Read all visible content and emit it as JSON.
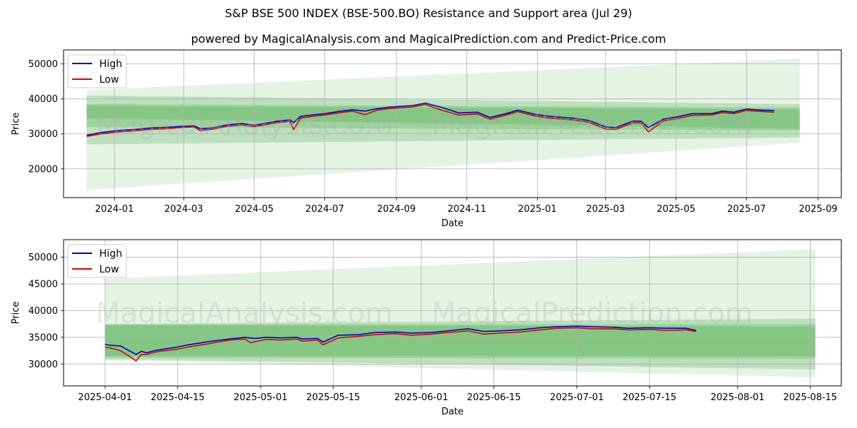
{
  "title": "S&P BSE 500 INDEX (BSE-500.BO) Resistance and Support area (Jul 29)",
  "subtitle": "powered by MagicalAnalysis.com and MagicalPrediction.com and Predict-Price.com",
  "watermarks": [
    "MagicalAnalysis.com",
    "MagicalPrediction.com"
  ],
  "colors": {
    "high": "#0000cc",
    "low": "#dd0000",
    "band": "#2ca02c",
    "grid": "#b0b0b0"
  },
  "chart_data": [
    {
      "type": "line",
      "xlabel": "Date",
      "ylabel": "Price",
      "x_ticks": [
        "2024-01",
        "2024-03",
        "2024-05",
        "2024-07",
        "2024-09",
        "2024-11",
        "2025-01",
        "2025-03",
        "2025-05",
        "2025-07",
        "2025-09"
      ],
      "y_ticks": [
        20000,
        30000,
        40000,
        50000
      ],
      "xlim": [
        "2023-11-18",
        "2025-09-21"
      ],
      "ylim": [
        11800,
        54000
      ],
      "legend": {
        "position": "top-left",
        "entries": [
          "High",
          "Low"
        ]
      },
      "grid": true,
      "series": [
        {
          "name": "High",
          "points": [
            [
              "2023-12-08",
              29600
            ],
            [
              "2023-12-20",
              30400
            ],
            [
              "2024-01-05",
              31000
            ],
            [
              "2024-01-20",
              31300
            ],
            [
              "2024-02-01",
              31700
            ],
            [
              "2024-02-15",
              31900
            ],
            [
              "2024-03-01",
              32200
            ],
            [
              "2024-03-10",
              32300
            ],
            [
              "2024-03-15",
              31500
            ],
            [
              "2024-03-25",
              31700
            ],
            [
              "2024-04-08",
              32600
            ],
            [
              "2024-04-20",
              33000
            ],
            [
              "2024-05-01",
              32500
            ],
            [
              "2024-05-10",
              33000
            ],
            [
              "2024-05-20",
              33600
            ],
            [
              "2024-06-01",
              34000
            ],
            [
              "2024-06-04",
              33200
            ],
            [
              "2024-06-10",
              35000
            ],
            [
              "2024-06-20",
              35400
            ],
            [
              "2024-07-01",
              35800
            ],
            [
              "2024-07-15",
              36500
            ],
            [
              "2024-07-25",
              36900
            ],
            [
              "2024-08-05",
              36500
            ],
            [
              "2024-08-15",
              37200
            ],
            [
              "2024-08-25",
              37600
            ],
            [
              "2024-09-05",
              37900
            ],
            [
              "2024-09-15",
              38100
            ],
            [
              "2024-09-26",
              38800
            ],
            [
              "2024-10-10",
              37600
            ],
            [
              "2024-10-25",
              36000
            ],
            [
              "2024-11-10",
              36200
            ],
            [
              "2024-11-21",
              34700
            ],
            [
              "2024-12-05",
              35800
            ],
            [
              "2024-12-15",
              36800
            ],
            [
              "2024-12-30",
              35600
            ],
            [
              "2025-01-10",
              35100
            ],
            [
              "2025-01-20",
              34800
            ],
            [
              "2025-02-01",
              34500
            ],
            [
              "2025-02-15",
              33800
            ],
            [
              "2025-03-01",
              32000
            ],
            [
              "2025-03-10",
              31800
            ],
            [
              "2025-03-25",
              33700
            ],
            [
              "2025-04-01",
              33600
            ],
            [
              "2025-04-07",
              31800
            ],
            [
              "2025-04-20",
              34200
            ],
            [
              "2025-05-01",
              34800
            ],
            [
              "2025-05-15",
              35800
            ],
            [
              "2025-06-01",
              35800
            ],
            [
              "2025-06-10",
              36500
            ],
            [
              "2025-06-20",
              36200
            ],
            [
              "2025-07-01",
              37100
            ],
            [
              "2025-07-15",
              36800
            ],
            [
              "2025-07-25",
              36700
            ]
          ]
        },
        {
          "name": "Low",
          "points": [
            [
              "2023-12-08",
              29300
            ],
            [
              "2023-12-20",
              30000
            ],
            [
              "2024-01-05",
              30600
            ],
            [
              "2024-01-20",
              30900
            ],
            [
              "2024-02-01",
              31300
            ],
            [
              "2024-02-15",
              31500
            ],
            [
              "2024-03-01",
              31900
            ],
            [
              "2024-03-10",
              32000
            ],
            [
              "2024-03-15",
              31000
            ],
            [
              "2024-03-25",
              31300
            ],
            [
              "2024-04-08",
              32200
            ],
            [
              "2024-04-20",
              32600
            ],
            [
              "2024-05-01",
              32100
            ],
            [
              "2024-05-10",
              32600
            ],
            [
              "2024-05-20",
              33200
            ],
            [
              "2024-06-01",
              33600
            ],
            [
              "2024-06-04",
              31200
            ],
            [
              "2024-06-10",
              34500
            ],
            [
              "2024-06-20",
              35000
            ],
            [
              "2024-07-01",
              35400
            ],
            [
              "2024-07-15",
              36100
            ],
            [
              "2024-07-25",
              36500
            ],
            [
              "2024-08-05",
              35500
            ],
            [
              "2024-08-15",
              36800
            ],
            [
              "2024-08-25",
              37200
            ],
            [
              "2024-09-05",
              37500
            ],
            [
              "2024-09-15",
              37700
            ],
            [
              "2024-09-26",
              38400
            ],
            [
              "2024-10-10",
              36800
            ],
            [
              "2024-10-25",
              35400
            ],
            [
              "2024-11-10",
              35700
            ],
            [
              "2024-11-21",
              34200
            ],
            [
              "2024-12-05",
              35400
            ],
            [
              "2024-12-15",
              36400
            ],
            [
              "2024-12-30",
              35100
            ],
            [
              "2025-01-10",
              34600
            ],
            [
              "2025-01-20",
              34300
            ],
            [
              "2025-02-01",
              34000
            ],
            [
              "2025-02-15",
              33300
            ],
            [
              "2025-03-01",
              31400
            ],
            [
              "2025-03-10",
              31300
            ],
            [
              "2025-03-25",
              33200
            ],
            [
              "2025-04-01",
              33100
            ],
            [
              "2025-04-07",
              30600
            ],
            [
              "2025-04-20",
              33700
            ],
            [
              "2025-05-01",
              34300
            ],
            [
              "2025-05-15",
              35300
            ],
            [
              "2025-06-01",
              35400
            ],
            [
              "2025-06-10",
              36100
            ],
            [
              "2025-06-20",
              35800
            ],
            [
              "2025-07-01",
              36700
            ],
            [
              "2025-07-15",
              36400
            ],
            [
              "2025-07-25",
              36200
            ]
          ]
        }
      ],
      "bands": [
        {
          "x": [
            "2023-12-08",
            "2025-08-16"
          ],
          "upper": [
            42500,
            51500
          ],
          "lower": [
            14000,
            27500
          ]
        },
        {
          "x": [
            "2023-12-08",
            "2025-08-16"
          ],
          "upper": [
            41000,
            38500
          ],
          "lower": [
            27000,
            29000
          ]
        },
        {
          "x": [
            "2023-12-08",
            "2025-08-16"
          ],
          "upper": [
            38500,
            37500
          ],
          "lower": [
            32000,
            31000
          ]
        },
        {
          "x": [
            "2023-12-08",
            "2025-08-16"
          ],
          "upper": [
            38000,
            37000
          ],
          "lower": [
            34500,
            31500
          ]
        }
      ]
    },
    {
      "type": "line",
      "xlabel": "Date",
      "ylabel": "Price",
      "x_ticks": [
        "2025-04-01",
        "2025-04-15",
        "2025-05-01",
        "2025-05-15",
        "2025-06-01",
        "2025-06-15",
        "2025-07-01",
        "2025-07-15",
        "2025-08-01",
        "2025-08-15"
      ],
      "y_ticks": [
        30000,
        35000,
        40000,
        45000,
        50000
      ],
      "xlim": [
        "2025-03-24",
        "2025-08-21"
      ],
      "ylim": [
        25900,
        53300
      ],
      "legend": {
        "position": "top-left",
        "entries": [
          "High",
          "Low"
        ]
      },
      "grid": true,
      "series": [
        {
          "name": "High",
          "points": [
            [
              "2025-04-01",
              33700
            ],
            [
              "2025-04-02",
              33500
            ],
            [
              "2025-04-04",
              33400
            ],
            [
              "2025-04-07",
              31800
            ],
            [
              "2025-04-08",
              32400
            ],
            [
              "2025-04-09",
              32100
            ],
            [
              "2025-04-11",
              32600
            ],
            [
              "2025-04-15",
              33200
            ],
            [
              "2025-04-17",
              33600
            ],
            [
              "2025-04-21",
              34200
            ],
            [
              "2025-04-25",
              34700
            ],
            [
              "2025-04-28",
              35000
            ],
            [
              "2025-04-30",
              34800
            ],
            [
              "2025-05-02",
              35000
            ],
            [
              "2025-05-05",
              34900
            ],
            [
              "2025-05-08",
              35000
            ],
            [
              "2025-05-09",
              34700
            ],
            [
              "2025-05-12",
              34800
            ],
            [
              "2025-05-13",
              34100
            ],
            [
              "2025-05-16",
              35400
            ],
            [
              "2025-05-20",
              35500
            ],
            [
              "2025-05-23",
              35900
            ],
            [
              "2025-05-27",
              36000
            ],
            [
              "2025-05-30",
              35800
            ],
            [
              "2025-06-03",
              35900
            ],
            [
              "2025-06-06",
              36200
            ],
            [
              "2025-06-10",
              36600
            ],
            [
              "2025-06-13",
              36100
            ],
            [
              "2025-06-16",
              36200
            ],
            [
              "2025-06-20",
              36400
            ],
            [
              "2025-06-24",
              36800
            ],
            [
              "2025-06-27",
              37000
            ],
            [
              "2025-07-01",
              37100
            ],
            [
              "2025-07-04",
              37000
            ],
            [
              "2025-07-08",
              36900
            ],
            [
              "2025-07-11",
              36700
            ],
            [
              "2025-07-15",
              36800
            ],
            [
              "2025-07-18",
              36700
            ],
            [
              "2025-07-22",
              36700
            ],
            [
              "2025-07-24",
              36300
            ]
          ]
        },
        {
          "name": "Low",
          "points": [
            [
              "2025-04-01",
              33200
            ],
            [
              "2025-04-02",
              33000
            ],
            [
              "2025-04-04",
              32500
            ],
            [
              "2025-04-07",
              30600
            ],
            [
              "2025-04-08",
              31800
            ],
            [
              "2025-04-09",
              31800
            ],
            [
              "2025-04-11",
              32300
            ],
            [
              "2025-04-15",
              32800
            ],
            [
              "2025-04-17",
              33200
            ],
            [
              "2025-04-21",
              33800
            ],
            [
              "2025-04-25",
              34500
            ],
            [
              "2025-04-28",
              34700
            ],
            [
              "2025-04-29",
              34000
            ],
            [
              "2025-05-02",
              34600
            ],
            [
              "2025-05-05",
              34500
            ],
            [
              "2025-05-08",
              34700
            ],
            [
              "2025-05-09",
              34300
            ],
            [
              "2025-05-12",
              34500
            ],
            [
              "2025-05-13",
              33600
            ],
            [
              "2025-05-16",
              34900
            ],
            [
              "2025-05-20",
              35200
            ],
            [
              "2025-05-23",
              35500
            ],
            [
              "2025-05-27",
              35700
            ],
            [
              "2025-05-30",
              35400
            ],
            [
              "2025-06-03",
              35600
            ],
            [
              "2025-06-06",
              35900
            ],
            [
              "2025-06-10",
              36200
            ],
            [
              "2025-06-13",
              35600
            ],
            [
              "2025-06-16",
              35800
            ],
            [
              "2025-06-20",
              36000
            ],
            [
              "2025-06-24",
              36400
            ],
            [
              "2025-06-27",
              36700
            ],
            [
              "2025-07-01",
              36800
            ],
            [
              "2025-07-04",
              36600
            ],
            [
              "2025-07-08",
              36600
            ],
            [
              "2025-07-11",
              36400
            ],
            [
              "2025-07-15",
              36500
            ],
            [
              "2025-07-18",
              36300
            ],
            [
              "2025-07-22",
              36400
            ],
            [
              "2025-07-24",
              36100
            ]
          ]
        }
      ],
      "bands": [
        {
          "x": [
            "2025-04-01",
            "2025-08-16"
          ],
          "upper": [
            46000,
            51500
          ],
          "lower": [
            30700,
            27500
          ]
        },
        {
          "x": [
            "2025-04-01",
            "2025-08-16"
          ],
          "upper": [
            37500,
            38500
          ],
          "lower": [
            30900,
            29000
          ]
        },
        {
          "x": [
            "2025-04-01",
            "2025-08-16"
          ],
          "upper": [
            37400,
            37500
          ],
          "lower": [
            31200,
            31000
          ]
        },
        {
          "x": [
            "2025-04-01",
            "2025-08-16"
          ],
          "upper": [
            37300,
            37000
          ],
          "lower": [
            31500,
            31500
          ]
        }
      ]
    }
  ]
}
